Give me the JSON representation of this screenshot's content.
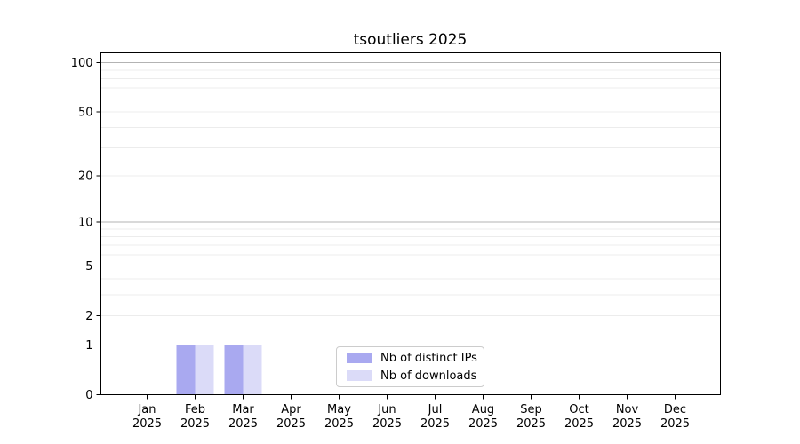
{
  "chart_data": {
    "type": "bar",
    "title": "tsoutliers 2025",
    "background": "#ffffff",
    "x_tick_months": [
      "Jan",
      "Feb",
      "Mar",
      "Apr",
      "May",
      "Jun",
      "Jul",
      "Aug",
      "Sep",
      "Oct",
      "Nov",
      "Dec"
    ],
    "x_tick_year": "2025",
    "y_ticks": [
      0,
      1,
      2,
      5,
      10,
      20,
      50,
      100
    ],
    "y_scale": "log1p",
    "ylim": [
      0,
      115
    ],
    "major_gridlines": [
      1,
      10,
      100
    ],
    "minor_gridlines": [
      2,
      3,
      4,
      5,
      6,
      7,
      8,
      9,
      20,
      30,
      40,
      50,
      60,
      70,
      80,
      90
    ],
    "grid": true,
    "legend_position": "bottom-center",
    "axis_color": "#000000",
    "major_grid_color": "#b3b3b3",
    "minor_grid_color": "#ececec",
    "series": [
      {
        "name": "Nb of distinct IPs",
        "color": "#a9a9f0",
        "values": [
          0,
          1,
          1,
          0,
          0,
          0,
          0,
          0,
          0,
          0,
          0,
          0
        ]
      },
      {
        "name": "Nb of downloads",
        "color": "#dbdbf8",
        "values": [
          0,
          1,
          1,
          0,
          0,
          0,
          0,
          0,
          0,
          0,
          0,
          0
        ]
      }
    ]
  }
}
